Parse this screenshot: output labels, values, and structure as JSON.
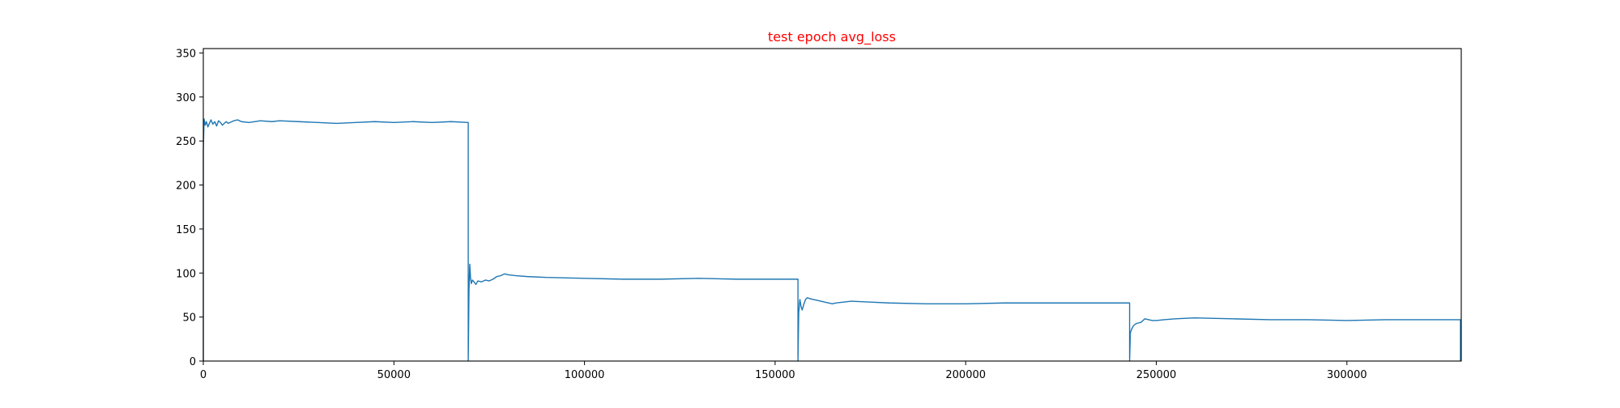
{
  "chart_data": {
    "type": "line",
    "title": "test epoch avg_loss",
    "title_color": "#ff0000",
    "line_color": "#1f77b4",
    "xlabel": "",
    "ylabel": "",
    "xlim": [
      0,
      330000
    ],
    "ylim": [
      0,
      355
    ],
    "x_ticks": [
      0,
      50000,
      100000,
      150000,
      200000,
      250000,
      300000
    ],
    "x_tick_labels": [
      "0",
      "50000",
      "100000",
      "150000",
      "200000",
      "250000",
      "300000"
    ],
    "y_ticks": [
      0,
      50,
      100,
      150,
      200,
      250,
      300,
      350
    ],
    "y_tick_labels": [
      "0",
      "50",
      "100",
      "150",
      "200",
      "250",
      "300",
      "350"
    ],
    "grid": false,
    "legend": "none",
    "series": [
      {
        "x": [
          0,
          0,
          200,
          500,
          800,
          1200,
          1600,
          2000,
          2500,
          3000,
          3500,
          4000,
          4500,
          5000,
          5500,
          6000,
          6500,
          7000,
          8000,
          9000,
          10000,
          12000,
          15000,
          18000,
          20000,
          25000,
          30000,
          35000,
          40000,
          45000,
          50000,
          55000,
          60000,
          65000,
          69500,
          69500,
          69700,
          69900,
          70100,
          70300,
          70600,
          71000,
          71500,
          72000,
          73000,
          74000,
          75000,
          76000,
          77000,
          78000,
          79000,
          80000,
          82000,
          85000,
          90000,
          100000,
          110000,
          120000,
          130000,
          140000,
          150000,
          156000,
          156000,
          156200,
          156500,
          156800,
          157100,
          157500,
          158000,
          158500,
          159000,
          160000,
          161000,
          162000,
          163000,
          164000,
          165000,
          166000,
          168000,
          170000,
          175000,
          180000,
          190000,
          200000,
          210000,
          220000,
          230000,
          243000,
          243000,
          243200,
          243500,
          244000,
          244500,
          245000,
          246000,
          247000,
          248000,
          249000,
          250000,
          252000,
          255000,
          260000,
          270000,
          280000,
          290000,
          300000,
          310000,
          320000,
          329800,
          329800
        ],
        "y": [
          0,
          238,
          275,
          268,
          272,
          266,
          270,
          274,
          269,
          272,
          267,
          273,
          271,
          268,
          270,
          272,
          270,
          271,
          273,
          274,
          272,
          271,
          273,
          272,
          273,
          272,
          271,
          270,
          271,
          272,
          271,
          272,
          271,
          272,
          271,
          0,
          80,
          110,
          95,
          88,
          92,
          90,
          87,
          91,
          90,
          92,
          91,
          93,
          96,
          97,
          99,
          98,
          97,
          96,
          95,
          94,
          93,
          93,
          94,
          93,
          93,
          93,
          0,
          55,
          70,
          62,
          58,
          64,
          70,
          72,
          71,
          70,
          69,
          68,
          67,
          66,
          65,
          66,
          67,
          68,
          67,
          66,
          65,
          65,
          66,
          66,
          66,
          66,
          0,
          32,
          36,
          40,
          42,
          43,
          44,
          48,
          47,
          46,
          46,
          47,
          48,
          49,
          48,
          47,
          47,
          46,
          47,
          47,
          47,
          0
        ]
      }
    ]
  }
}
